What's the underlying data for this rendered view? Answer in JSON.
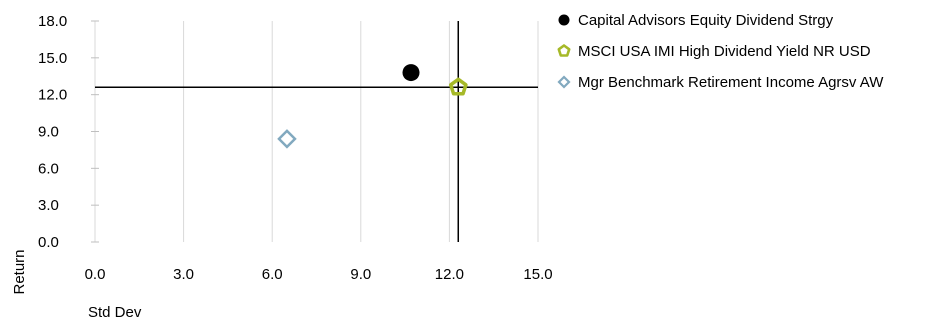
{
  "chart_data": {
    "type": "scatter",
    "xlabel": "Std Dev",
    "ylabel": "Return",
    "xlim": [
      0,
      15
    ],
    "ylim": [
      0,
      18
    ],
    "x_ticks": [
      "0.0",
      "3.0",
      "6.0",
      "9.0",
      "12.0",
      "15.0"
    ],
    "y_ticks": [
      "0.0",
      "3.0",
      "6.0",
      "9.0",
      "12.0",
      "15.0",
      "18.0"
    ],
    "grid": "vertical",
    "legend_position": "right",
    "series": [
      {
        "name": "Capital Advisors Equity Dividend Strgy",
        "marker": "filled-circle",
        "color": "#000000",
        "x": 10.7,
        "y": 13.8
      },
      {
        "name": "MSCI USA IMI High Dividend Yield NR USD",
        "marker": "pentagon",
        "color": "#a6b928",
        "x": 12.3,
        "y": 12.6
      },
      {
        "name": "Mgr Benchmark Retirement Income Agrsv AW",
        "marker": "diamond",
        "color": "#82a9bf",
        "x": 6.5,
        "y": 8.4
      }
    ],
    "reference_lines": {
      "x": 12.3,
      "y": 12.6
    }
  }
}
